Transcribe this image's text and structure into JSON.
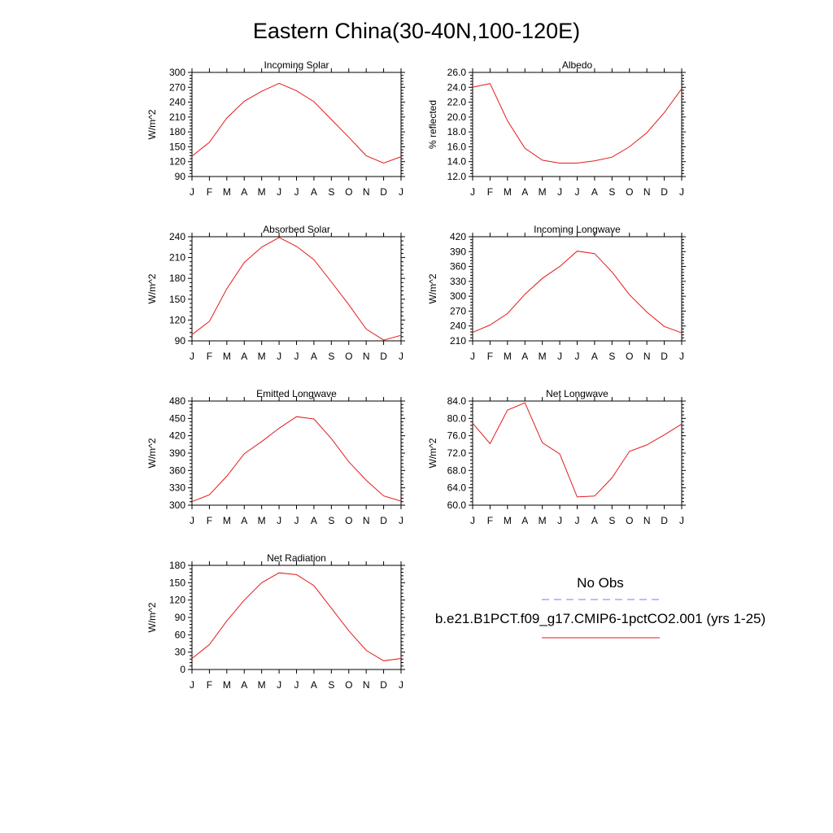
{
  "page": {
    "title": "Eastern China(30-40N,100-120E)"
  },
  "legend": {
    "obs_label": "No Obs",
    "obs_color": "#7a7aff",
    "model_label": "b.e21.B1PCT.f09_g17.CMIP6-1pctCO2.001 (yrs 1-25)",
    "model_color": "#e41a1c"
  },
  "chart_data": [
    {
      "type": "line",
      "title": "Incoming Solar",
      "ylabel": "W/m^2",
      "categories": [
        "J",
        "F",
        "M",
        "A",
        "M",
        "J",
        "J",
        "A",
        "S",
        "O",
        "N",
        "D",
        "J"
      ],
      "ylim": [
        90,
        300
      ],
      "yticks": [
        "90",
        "120",
        "150",
        "180",
        "210",
        "240",
        "270",
        "300"
      ],
      "series": [
        {
          "values": [
            131,
            159,
            208,
            242,
            262,
            278,
            263,
            241,
            205,
            169,
            132,
            117,
            130
          ]
        }
      ]
    },
    {
      "type": "line",
      "title": "Albedo",
      "ylabel": "% reflected",
      "categories": [
        "J",
        "F",
        "M",
        "A",
        "M",
        "J",
        "J",
        "A",
        "S",
        "O",
        "N",
        "D",
        "J"
      ],
      "ylim": [
        12,
        26
      ],
      "yticks": [
        "12.0",
        "14.0",
        "16.0",
        "18.0",
        "20.0",
        "22.0",
        "24.0",
        "26.0"
      ],
      "series": [
        {
          "values": [
            24.0,
            24.5,
            19.5,
            15.8,
            14.2,
            13.8,
            13.8,
            14.1,
            14.6,
            16.0,
            17.9,
            20.6,
            23.8
          ]
        }
      ]
    },
    {
      "type": "line",
      "title": "Absorbed Solar",
      "ylabel": "W/m^2",
      "categories": [
        "J",
        "F",
        "M",
        "A",
        "M",
        "J",
        "J",
        "A",
        "S",
        "O",
        "N",
        "D",
        "J"
      ],
      "ylim": [
        90,
        240
      ],
      "yticks": [
        "90",
        "120",
        "150",
        "180",
        "210",
        "240"
      ],
      "series": [
        {
          "values": [
            99,
            118,
            165,
            203,
            225,
            239,
            226,
            207,
            175,
            142,
            107,
            91,
            98
          ]
        }
      ]
    },
    {
      "type": "line",
      "title": "Incoming Longwave",
      "ylabel": "W/m^2",
      "categories": [
        "J",
        "F",
        "M",
        "A",
        "M",
        "J",
        "J",
        "A",
        "S",
        "O",
        "N",
        "D",
        "J"
      ],
      "ylim": [
        210,
        420
      ],
      "yticks": [
        "210",
        "240",
        "270",
        "300",
        "330",
        "360",
        "390",
        "420"
      ],
      "series": [
        {
          "values": [
            227,
            242,
            265,
            304,
            336,
            360,
            391,
            386,
            349,
            303,
            268,
            239,
            226
          ]
        }
      ]
    },
    {
      "type": "line",
      "title": "Emitted Longwave",
      "ylabel": "W/m^2",
      "categories": [
        "J",
        "F",
        "M",
        "A",
        "M",
        "J",
        "J",
        "A",
        "S",
        "O",
        "N",
        "D",
        "J"
      ],
      "ylim": [
        300,
        480
      ],
      "yticks": [
        "300",
        "330",
        "360",
        "390",
        "420",
        "450",
        "480"
      ],
      "series": [
        {
          "values": [
            306,
            318,
            350,
            389,
            410,
            433,
            453,
            449,
            415,
            375,
            343,
            316,
            307
          ]
        }
      ]
    },
    {
      "type": "line",
      "title": "Net Longwave",
      "ylabel": "W/m^2",
      "categories": [
        "J",
        "F",
        "M",
        "A",
        "M",
        "J",
        "J",
        "A",
        "S",
        "O",
        "N",
        "D",
        "J"
      ],
      "ylim": [
        60,
        84
      ],
      "yticks": [
        "60.0",
        "64.0",
        "68.0",
        "72.0",
        "76.0",
        "80.0",
        "84.0"
      ],
      "series": [
        {
          "values": [
            78.9,
            74.2,
            81.9,
            83.6,
            74.4,
            71.8,
            61.9,
            62.1,
            66.3,
            72.4,
            73.9,
            76.2,
            78.7
          ]
        }
      ]
    },
    {
      "type": "line",
      "title": "Net Radiation",
      "ylabel": "W/m^2",
      "categories": [
        "J",
        "F",
        "M",
        "A",
        "M",
        "J",
        "J",
        "A",
        "S",
        "O",
        "N",
        "D",
        "J"
      ],
      "ylim": [
        0,
        180
      ],
      "yticks": [
        "0",
        "30",
        "60",
        "90",
        "120",
        "150",
        "180"
      ],
      "series": [
        {
          "values": [
            19,
            43,
            84,
            120,
            150,
            167,
            164,
            145,
            106,
            67,
            33,
            15,
            19
          ]
        }
      ]
    }
  ]
}
